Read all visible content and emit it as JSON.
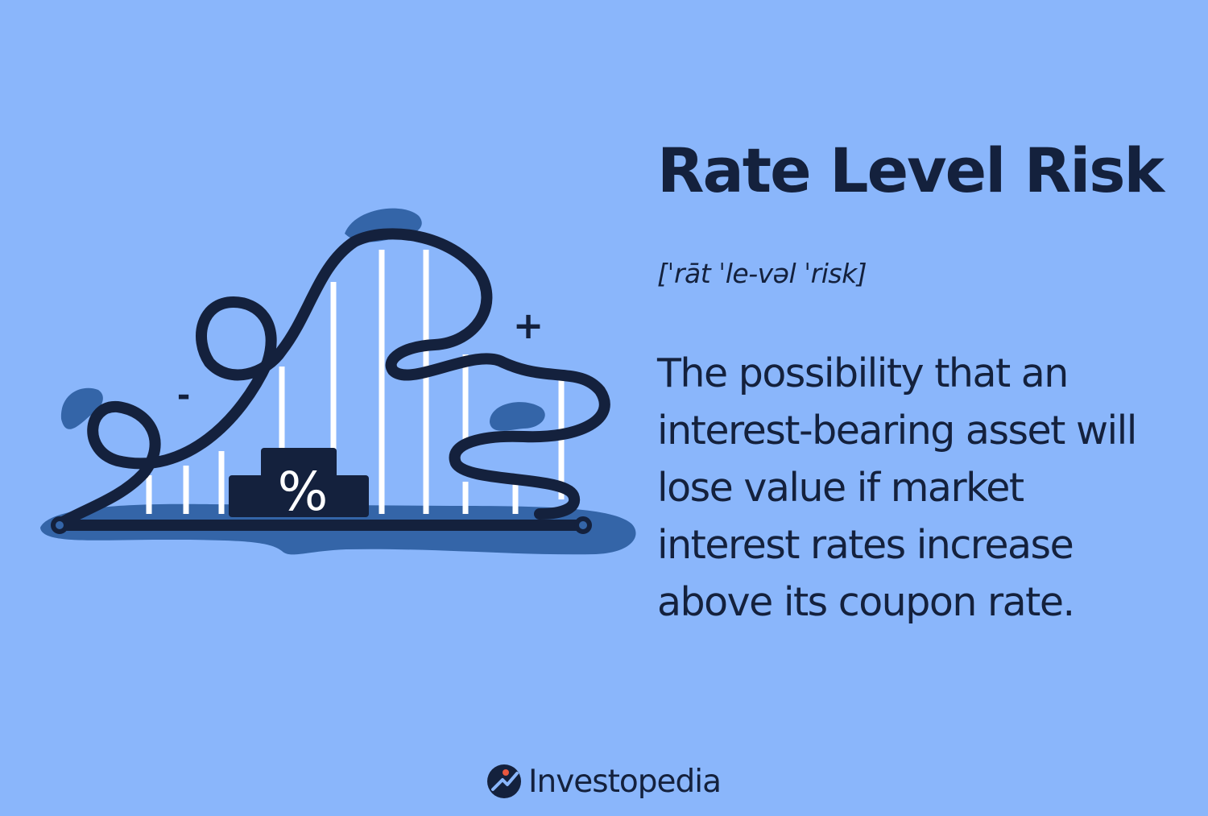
{
  "header": {
    "title": "Rate Level Risk",
    "pronunciation": "[ˈrāt ˈle-vəl ˈrisk]"
  },
  "definition": {
    "text": "The possibility that an interest-bearing asset will lose value if market interest rates increase above its coupon rate."
  },
  "illustration": {
    "percent_label": "%",
    "minus_label": "-",
    "plus_label": "+"
  },
  "brand": {
    "name": "Investopedia",
    "logo_icon": "investopedia-logo-icon"
  },
  "colors": {
    "background": "#8ab6fb",
    "ink": "#14213d",
    "shadow_blue": "#3465a8",
    "white": "#ffffff",
    "logo_accent": "#e8573f"
  }
}
